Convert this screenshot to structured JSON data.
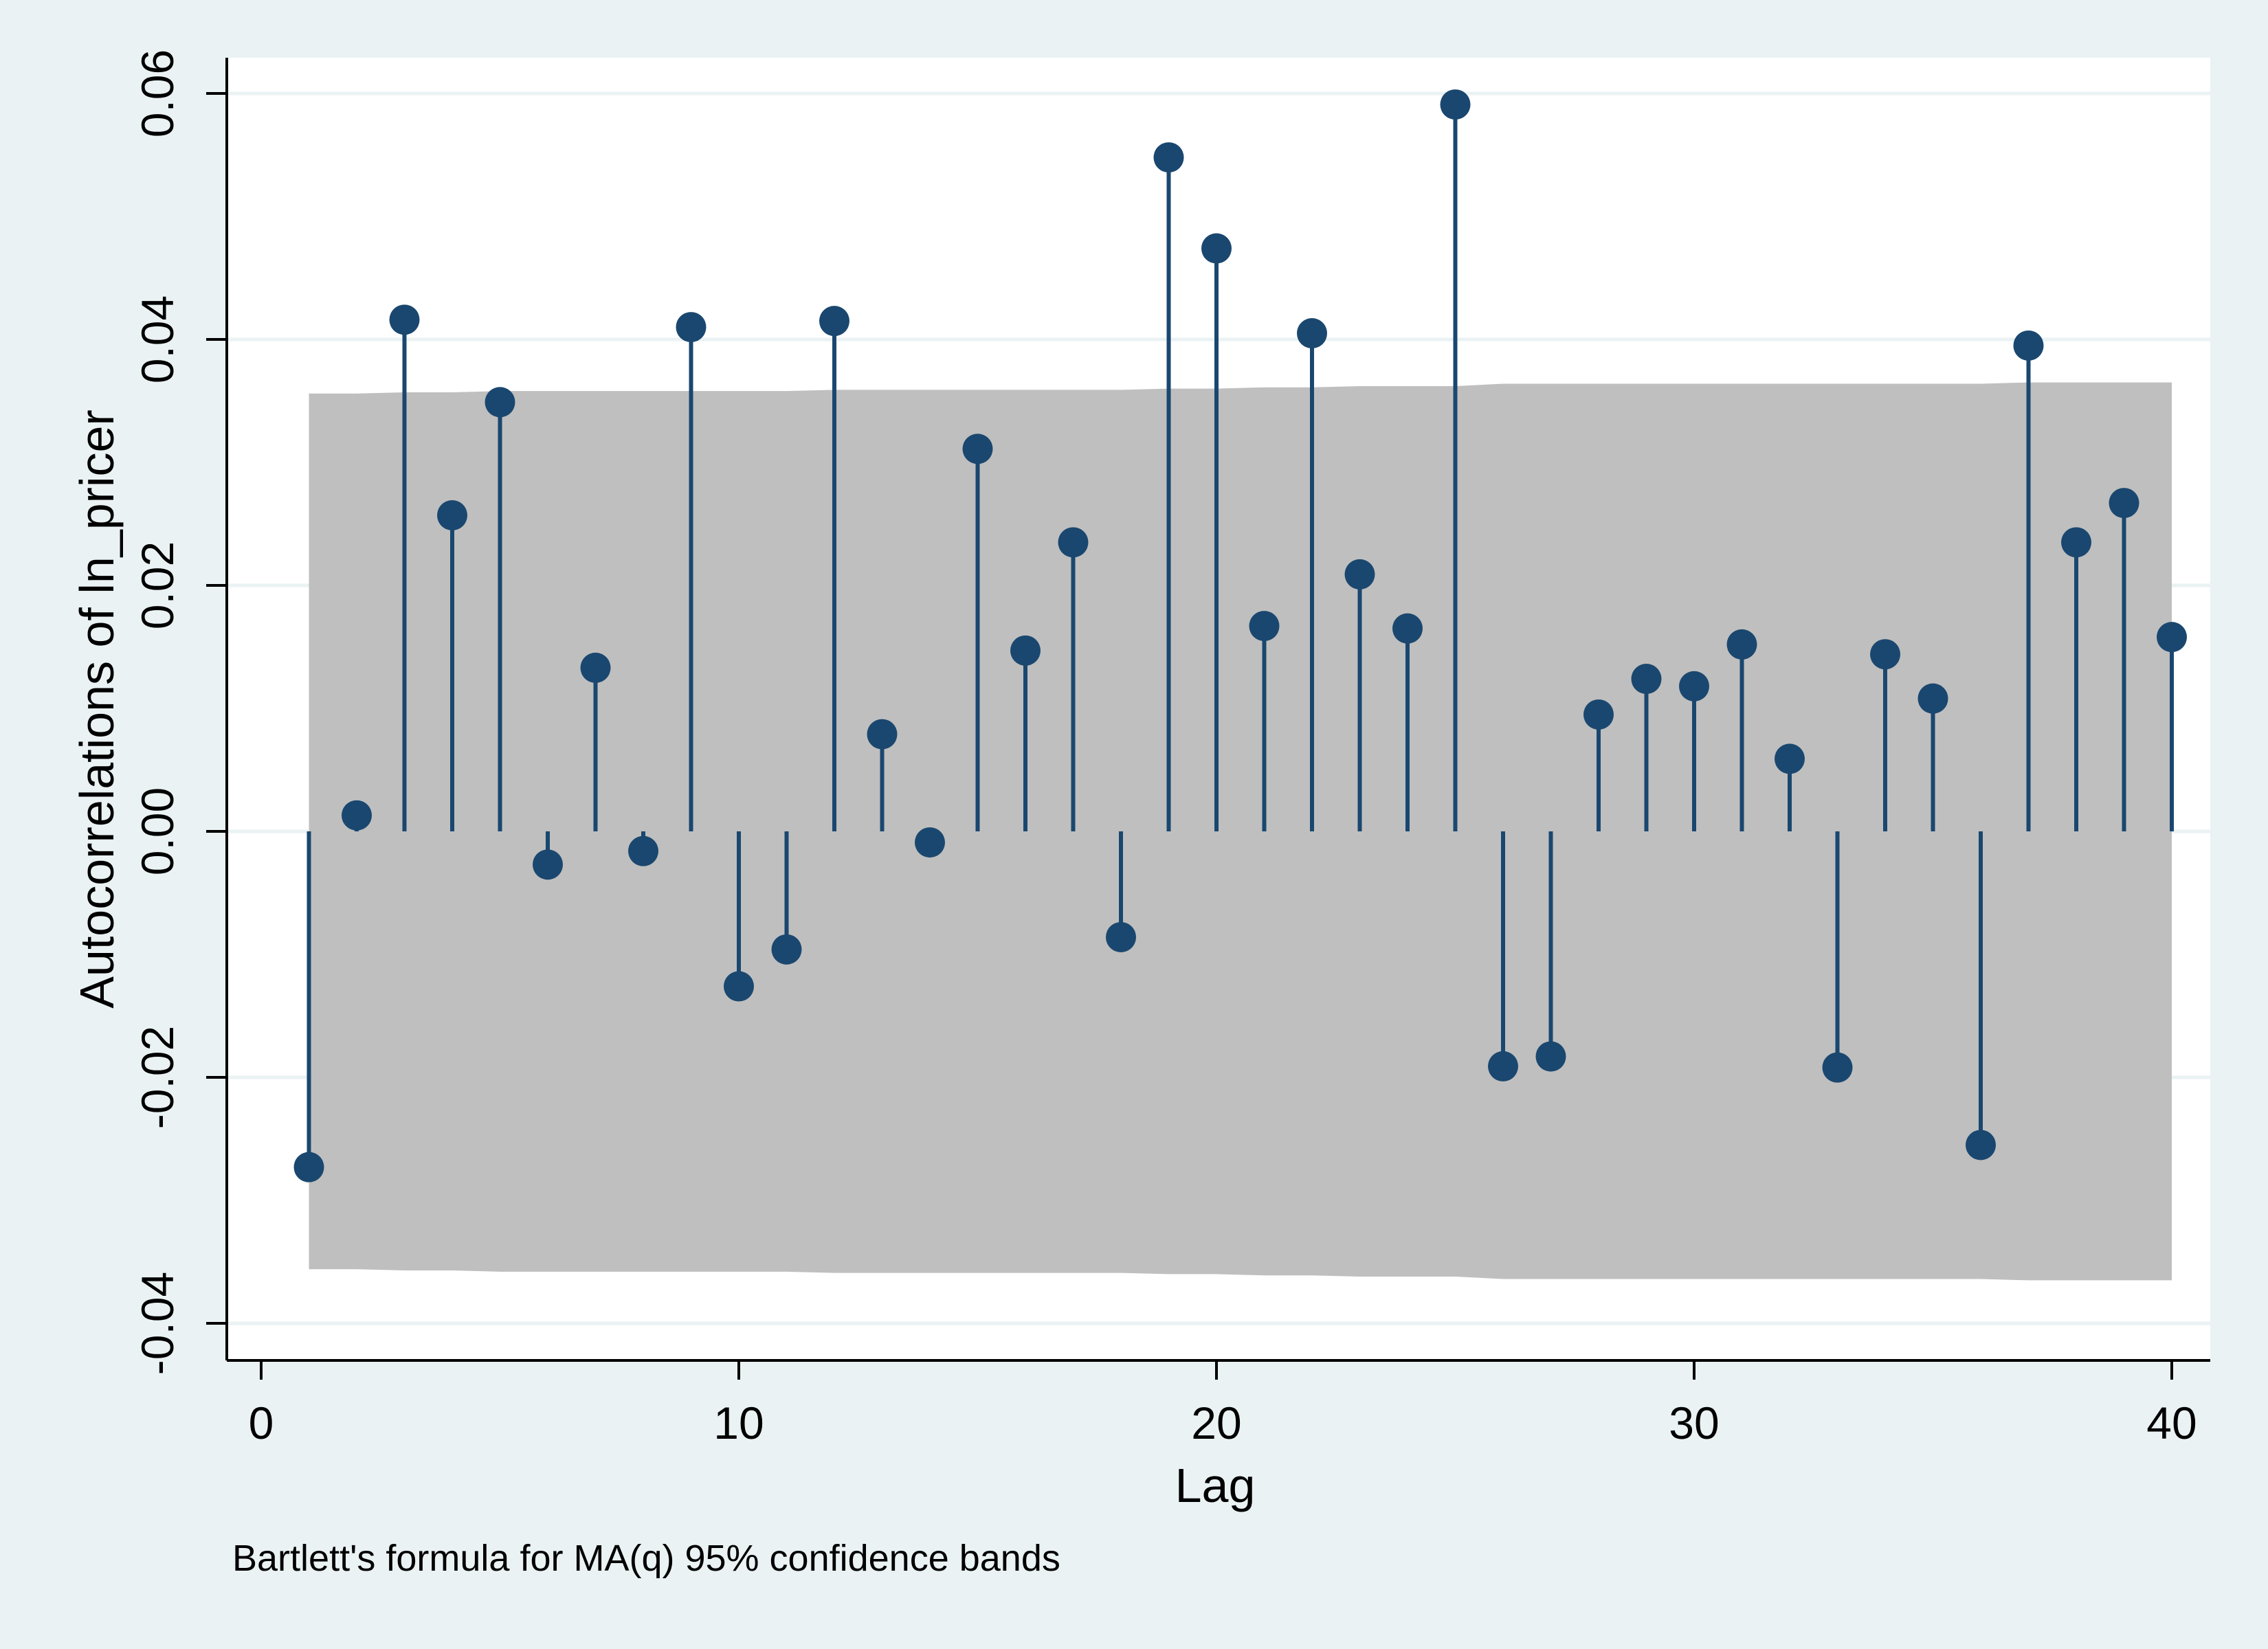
{
  "chart_data": {
    "type": "scatter",
    "ylabel": "Autocorrelations of ln_pricer",
    "xlabel": "Lag",
    "note": "Bartlett's formula for MA(q) 95% confidence bands",
    "xlim": [
      0,
      40
    ],
    "ylim": [
      -0.04,
      0.06
    ],
    "xticks": [
      0,
      10,
      20,
      30,
      40
    ],
    "xtick_labels": [
      "0",
      "10",
      "20",
      "30",
      "40"
    ],
    "yticks": [
      -0.04,
      -0.02,
      0.0,
      0.02,
      0.04,
      0.06
    ],
    "ytick_labels": [
      "-0.04",
      "-0.02",
      "0.00",
      "0.02",
      "0.04",
      "0.06"
    ],
    "grid": true,
    "lags": [
      1,
      2,
      3,
      4,
      5,
      6,
      7,
      8,
      9,
      10,
      11,
      12,
      13,
      14,
      15,
      16,
      17,
      18,
      19,
      20,
      21,
      22,
      23,
      24,
      25,
      26,
      27,
      28,
      29,
      30,
      31,
      32,
      33,
      34,
      35,
      36,
      37,
      38,
      39,
      40
    ],
    "autocorrelations": [
      -0.0273,
      0.0013,
      0.0416,
      0.0257,
      0.0349,
      -0.0027,
      0.0133,
      -0.0016,
      0.041,
      -0.0126,
      -0.0096,
      0.0415,
      0.0079,
      -0.0009,
      0.0311,
      0.0147,
      0.0235,
      -0.0086,
      0.0548,
      0.0474,
      0.0167,
      0.0405,
      0.0209,
      0.0165,
      0.0591,
      -0.0191,
      -0.0183,
      0.0095,
      0.0124,
      0.0118,
      0.0152,
      0.0059,
      -0.0192,
      0.0144,
      0.0108,
      -0.0255,
      0.0395,
      0.0235,
      0.0267,
      0.0158
    ],
    "confidence_band_upper": [
      0.0356,
      0.0356,
      0.0357,
      0.0357,
      0.0358,
      0.0358,
      0.0358,
      0.0358,
      0.0358,
      0.0358,
      0.0358,
      0.0359,
      0.0359,
      0.0359,
      0.0359,
      0.0359,
      0.0359,
      0.0359,
      0.036,
      0.036,
      0.0361,
      0.0361,
      0.0362,
      0.0362,
      0.0362,
      0.0364,
      0.0364,
      0.0364,
      0.0364,
      0.0364,
      0.0364,
      0.0364,
      0.0364,
      0.0364,
      0.0364,
      0.0364,
      0.0365,
      0.0365,
      0.0365,
      0.0365
    ],
    "colors": {
      "page_background": "#eaf2f3",
      "plot_background": "#ffffff",
      "band": "#bfbfbf",
      "marker": "#1a476f",
      "grid": "#eaf2f3"
    }
  }
}
